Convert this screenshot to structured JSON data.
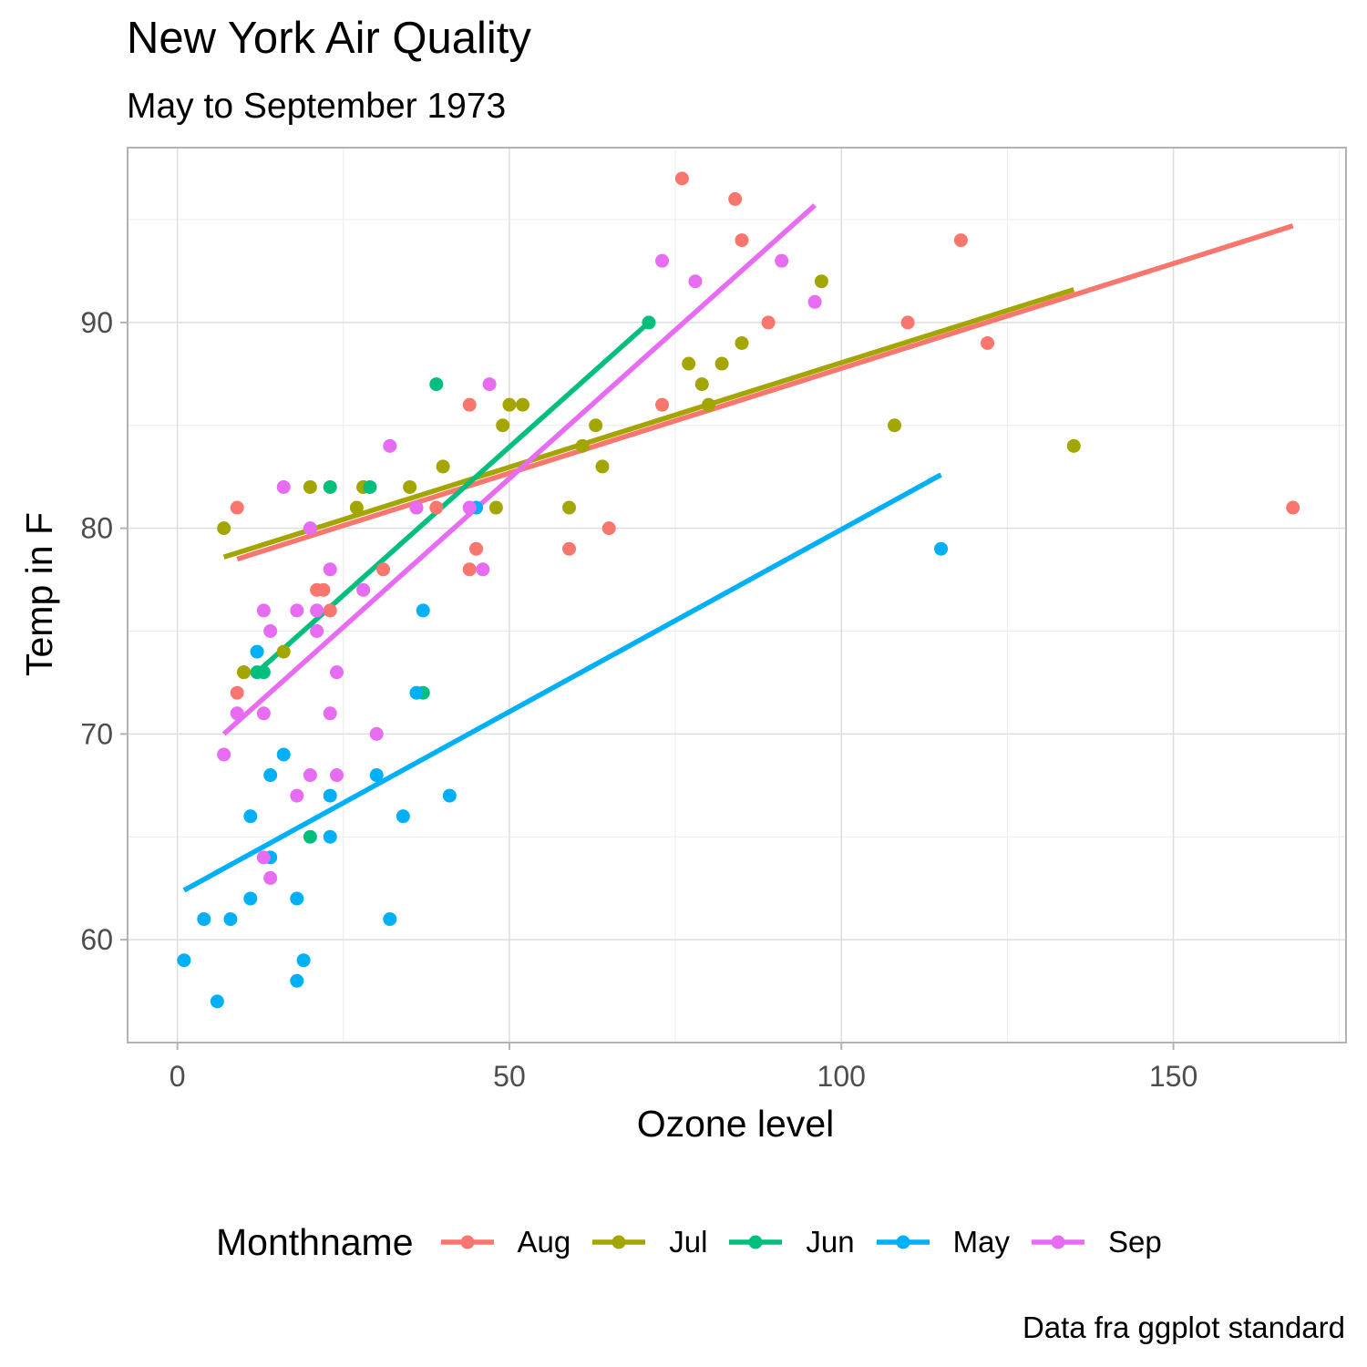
{
  "title": "New York Air Quality",
  "subtitle": "May to September 1973",
  "caption": "Data fra ggplot standard",
  "chart_data": {
    "type": "scatter",
    "xlabel": "Ozone level",
    "ylabel": "Temp in F",
    "xlim": [
      -7.5,
      176
    ],
    "ylim": [
      55,
      98.5
    ],
    "x_ticks": [
      0,
      50,
      100,
      150
    ],
    "y_ticks": [
      60,
      70,
      80,
      90
    ],
    "grid": true,
    "legend_title": "Monthname",
    "legend_position": "bottom",
    "series": [
      {
        "name": "Aug",
        "color": "#F8766D",
        "trend": [
          [
            9,
            78.5
          ],
          [
            168,
            94.7
          ]
        ],
        "points": [
          [
            9,
            81
          ],
          [
            9,
            72
          ],
          [
            10,
            73
          ],
          [
            21,
            77
          ],
          [
            22,
            77
          ],
          [
            23,
            76
          ],
          [
            28,
            82
          ],
          [
            31,
            78
          ],
          [
            36,
            81
          ],
          [
            39,
            81
          ],
          [
            44,
            86
          ],
          [
            44,
            78
          ],
          [
            45,
            79
          ],
          [
            44,
            81
          ],
          [
            59,
            79
          ],
          [
            65,
            80
          ],
          [
            73,
            86
          ],
          [
            76,
            97
          ],
          [
            84,
            96
          ],
          [
            85,
            94
          ],
          [
            89,
            90
          ],
          [
            110,
            90
          ],
          [
            118,
            94
          ],
          [
            122,
            89
          ],
          [
            168,
            81
          ]
        ]
      },
      {
        "name": "Jul",
        "color": "#A3A500",
        "trend": [
          [
            7,
            78.6
          ],
          [
            135,
            91.6
          ]
        ],
        "points": [
          [
            7,
            80
          ],
          [
            10,
            73
          ],
          [
            16,
            74
          ],
          [
            20,
            82
          ],
          [
            27,
            81
          ],
          [
            28,
            82
          ],
          [
            35,
            82
          ],
          [
            40,
            83
          ],
          [
            48,
            81
          ],
          [
            49,
            85
          ],
          [
            50,
            86
          ],
          [
            52,
            86
          ],
          [
            59,
            81
          ],
          [
            61,
            84
          ],
          [
            63,
            85
          ],
          [
            64,
            83
          ],
          [
            77,
            88
          ],
          [
            79,
            87
          ],
          [
            80,
            86
          ],
          [
            82,
            88
          ],
          [
            85,
            89
          ],
          [
            97,
            92
          ],
          [
            108,
            85
          ],
          [
            135,
            84
          ]
        ]
      },
      {
        "name": "Jun",
        "color": "#00BF7D",
        "trend": [
          [
            12,
            73
          ],
          [
            71,
            90
          ]
        ],
        "points": [
          [
            12,
            73
          ],
          [
            13,
            73
          ],
          [
            20,
            65
          ],
          [
            23,
            82
          ],
          [
            29,
            82
          ],
          [
            37,
            72
          ],
          [
            39,
            87
          ],
          [
            71,
            90
          ]
        ]
      },
      {
        "name": "May",
        "color": "#00B0F6",
        "trend": [
          [
            1,
            62.4
          ],
          [
            115,
            82.6
          ]
        ],
        "points": [
          [
            1,
            59
          ],
          [
            4,
            61
          ],
          [
            6,
            57
          ],
          [
            8,
            61
          ],
          [
            11,
            66
          ],
          [
            11,
            62
          ],
          [
            12,
            74
          ],
          [
            14,
            68
          ],
          [
            14,
            64
          ],
          [
            16,
            69
          ],
          [
            18,
            62
          ],
          [
            18,
            58
          ],
          [
            19,
            59
          ],
          [
            23,
            67
          ],
          [
            23,
            65
          ],
          [
            30,
            68
          ],
          [
            32,
            61
          ],
          [
            34,
            66
          ],
          [
            36,
            72
          ],
          [
            37,
            76
          ],
          [
            41,
            67
          ],
          [
            45,
            81
          ],
          [
            115,
            79
          ]
        ]
      },
      {
        "name": "Sep",
        "color": "#E76BF3",
        "trend": [
          [
            7,
            70
          ],
          [
            96,
            95.7
          ]
        ],
        "points": [
          [
            7,
            69
          ],
          [
            9,
            71
          ],
          [
            13,
            76
          ],
          [
            13,
            71
          ],
          [
            13,
            64
          ],
          [
            14,
            75
          ],
          [
            14,
            63
          ],
          [
            16,
            82
          ],
          [
            18,
            76
          ],
          [
            18,
            67
          ],
          [
            20,
            80
          ],
          [
            20,
            68
          ],
          [
            21,
            76
          ],
          [
            21,
            75
          ],
          [
            23,
            78
          ],
          [
            23,
            71
          ],
          [
            24,
            73
          ],
          [
            24,
            68
          ],
          [
            28,
            77
          ],
          [
            30,
            70
          ],
          [
            32,
            84
          ],
          [
            36,
            81
          ],
          [
            44,
            81
          ],
          [
            46,
            78
          ],
          [
            47,
            87
          ],
          [
            73,
            93
          ],
          [
            78,
            92
          ],
          [
            91,
            93
          ],
          [
            96,
            91
          ]
        ]
      }
    ]
  }
}
